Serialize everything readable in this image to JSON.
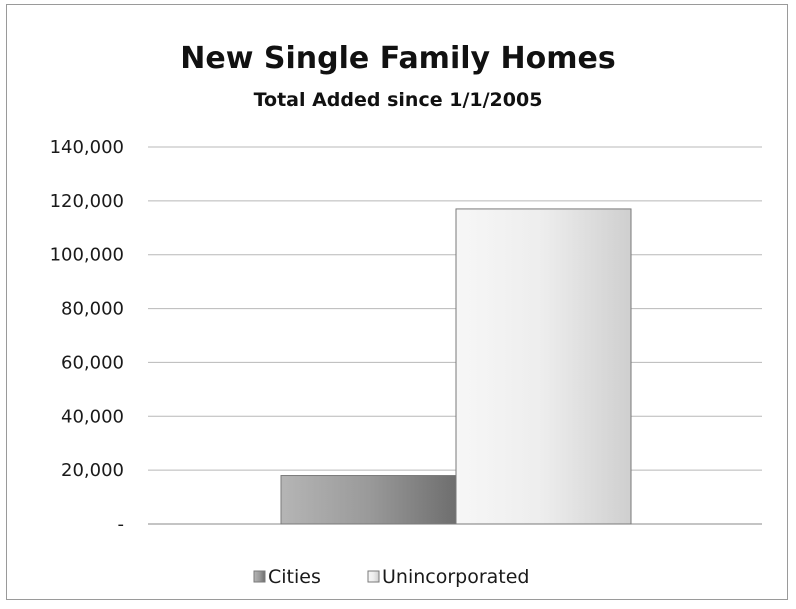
{
  "chart_data": {
    "type": "bar",
    "title": "New Single Family Homes",
    "subtitle": "Total Added since 1/1/2005",
    "xlabel": "",
    "ylabel": "",
    "ylim": [
      0,
      140000
    ],
    "y_ticks": [
      0,
      20000,
      40000,
      60000,
      80000,
      100000,
      120000,
      140000
    ],
    "y_tick_labels": [
      "-",
      "20,000",
      "40,000",
      "60,000",
      "80,000",
      "100,000",
      "120,000",
      "140,000"
    ],
    "grid": true,
    "legend_position": "bottom",
    "series": [
      {
        "name": "Cities",
        "values": [
          18000
        ],
        "color": "#8c8c8c"
      },
      {
        "name": "Unincorporated",
        "values": [
          117000
        ],
        "color": "#e6e6e6"
      }
    ]
  }
}
